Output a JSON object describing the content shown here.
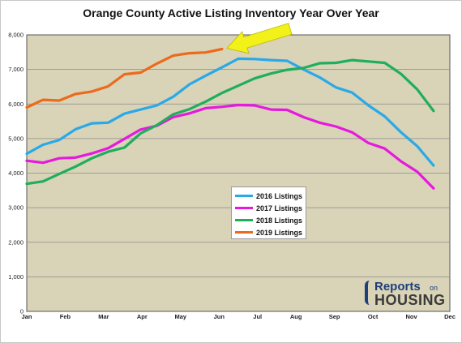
{
  "chart_data": {
    "type": "line",
    "title": "Orange County Active Listing Inventory Year Over Year",
    "xlabel": "",
    "ylabel": "",
    "ylim": [
      0,
      8000
    ],
    "yticks": [
      "0",
      "1,000",
      "2,000",
      "3,000",
      "4,000",
      "5,000",
      "6,000",
      "7,000",
      "8,000"
    ],
    "x_tick_labels": [
      "Jan",
      "Feb",
      "Mar",
      "Apr",
      "May",
      "Jun",
      "Jul",
      "Aug",
      "Sep",
      "Oct",
      "Nov",
      "Dec"
    ],
    "points_per_series": 27,
    "grid": "horizontal",
    "legend_placement": "center-right",
    "background": "#d9d3b7",
    "series": [
      {
        "name": "2016 Listings",
        "color": "#29a9e8",
        "values": [
          4560,
          4820,
          4960,
          5270,
          5440,
          5460,
          5720,
          5840,
          5960,
          6210,
          6570,
          6820,
          7060,
          7310,
          7300,
          7270,
          7250,
          7000,
          6770,
          6480,
          6330,
          5960,
          5640,
          5180,
          4780,
          4220,
          null
        ]
      },
      {
        "name": "2017 Listings",
        "color": "#e619de",
        "values": [
          4360,
          4300,
          4430,
          4450,
          4570,
          4720,
          4990,
          5260,
          5370,
          5620,
          5730,
          5880,
          5920,
          5970,
          5960,
          5840,
          5830,
          5620,
          5460,
          5350,
          5180,
          4870,
          4710,
          4340,
          4040,
          3560,
          null
        ]
      },
      {
        "name": "2018 Listings",
        "color": "#1fae5c",
        "values": [
          3690,
          3760,
          3980,
          4190,
          4430,
          4620,
          4740,
          5150,
          5390,
          5700,
          5850,
          6070,
          6320,
          6530,
          6740,
          6880,
          6990,
          7040,
          7180,
          7190,
          7270,
          7230,
          7190,
          6870,
          6420,
          5800,
          null
        ]
      },
      {
        "name": "2019 Listings",
        "color": "#ec6a1c",
        "values": [
          5900,
          6120,
          6100,
          6290,
          6360,
          6510,
          6860,
          6910,
          7170,
          7400,
          7470,
          7490,
          7590,
          null,
          null,
          null,
          null,
          null,
          null,
          null,
          null,
          null,
          null,
          null,
          null,
          null,
          null
        ]
      }
    ],
    "annotation": "yellow arrow pointing to latest 2019 value"
  },
  "logo": {
    "line1": "Reports",
    "line1_suffix": "on",
    "line2": "HOUSING"
  }
}
